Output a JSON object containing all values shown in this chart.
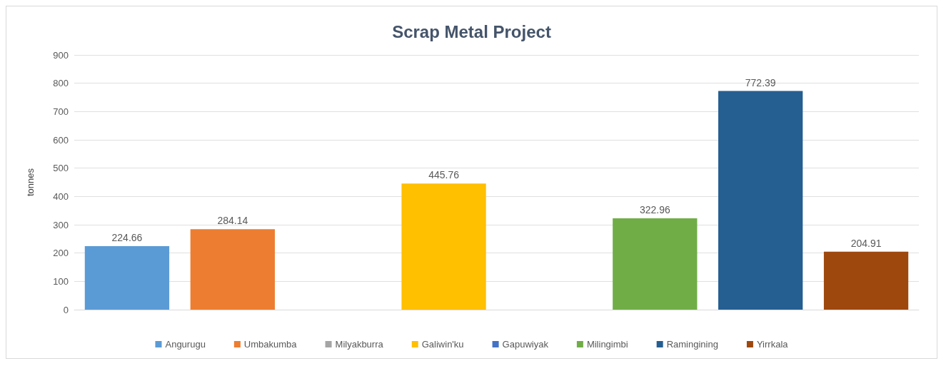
{
  "chart_data": {
    "type": "bar",
    "title": "Scrap Metal Project",
    "ylabel": "tonnes",
    "categories": [
      null,
      null,
      null,
      null,
      null,
      null,
      null,
      null
    ],
    "series": [
      {
        "name": "Angurugu",
        "color": "#5b9bd5",
        "values": [
          224.66,
          null,
          null,
          null,
          null,
          null,
          null,
          null
        ]
      },
      {
        "name": "Umbakumba",
        "color": "#ed7d31",
        "values": [
          null,
          284.14,
          null,
          null,
          null,
          null,
          null,
          null
        ]
      },
      {
        "name": "Milyakburra",
        "color": "#a5a5a5",
        "values": [
          null,
          null,
          null,
          null,
          null,
          null,
          null,
          null
        ]
      },
      {
        "name": "Galiwin'ku",
        "color": "#ffc000",
        "values": [
          null,
          null,
          null,
          445.76,
          null,
          null,
          null,
          null
        ]
      },
      {
        "name": "Gapuwiyak",
        "color": "#4472c4",
        "values": [
          null,
          null,
          null,
          null,
          null,
          null,
          null,
          null
        ]
      },
      {
        "name": "Milingimbi",
        "color": "#70ad47",
        "values": [
          null,
          null,
          null,
          null,
          null,
          322.96,
          null,
          null
        ]
      },
      {
        "name": "Ramingining",
        "color": "#255e91",
        "values": [
          null,
          null,
          null,
          null,
          null,
          null,
          772.39,
          null
        ]
      },
      {
        "name": "Yirrkala",
        "color": "#9e480e",
        "values": [
          null,
          null,
          null,
          null,
          null,
          null,
          null,
          204.91
        ]
      }
    ],
    "ylim": [
      0,
      900
    ],
    "yticks": [
      0,
      100,
      200,
      300,
      400,
      500,
      600,
      700,
      800,
      900
    ],
    "grid": "y",
    "legend": "bottom",
    "data_labels": true
  }
}
